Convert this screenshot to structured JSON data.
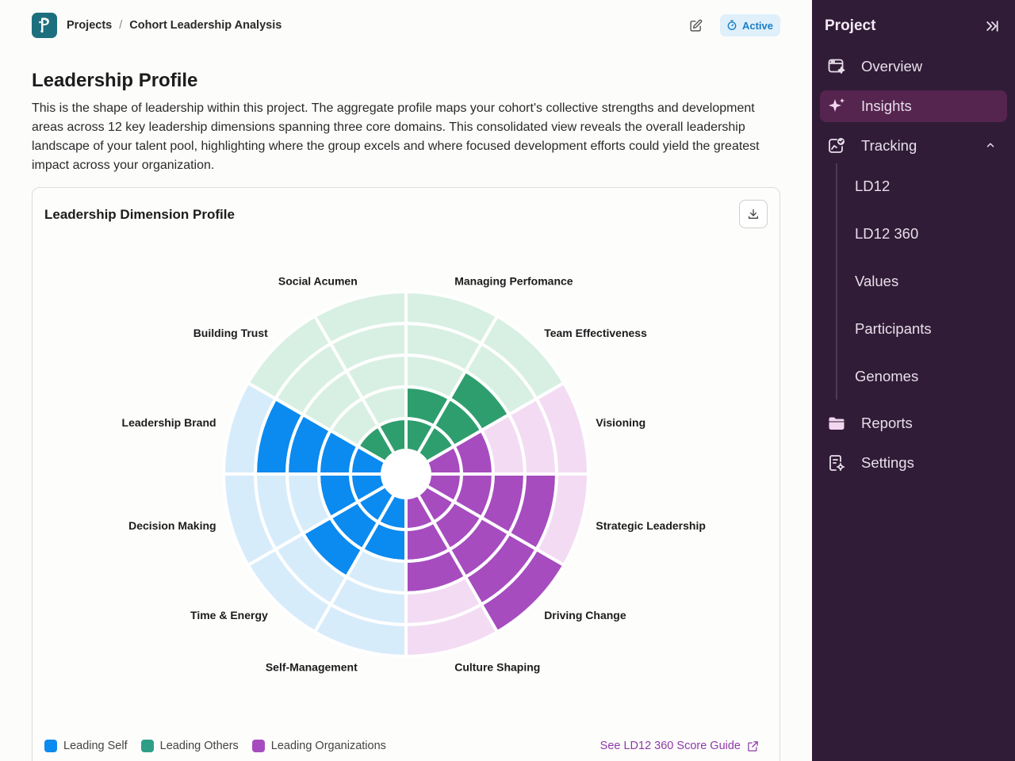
{
  "breadcrumb": {
    "projects": "Projects",
    "separator": "/",
    "current": "Cohort Leadership Analysis"
  },
  "status": {
    "label": "Active",
    "color": "#1b7fc6"
  },
  "page": {
    "title": "Leadership Profile",
    "intro": "This is the shape of leadership within this project. The aggregate profile maps your cohort's collective strengths and development areas across 12 key leadership dimensions spanning three core domains. This consolidated view reveals the overall leadership landscape of your talent pool, highlighting where the group excels and where focused development efforts could yield the greatest impact across your organization."
  },
  "card": {
    "title": "Leadership Dimension Profile"
  },
  "chart_data": {
    "type": "polar-bar",
    "title": "Leadership Dimension Profile",
    "rlim": [
      0,
      5
    ],
    "categories": [
      "Managing Perfomance",
      "Team Effectiveness",
      "Visioning",
      "Strategic Leadership",
      "Driving Change",
      "Culture Shaping",
      "Self-Management",
      "Time & Energy",
      "Decision Making",
      "Leadership Brand",
      "Building Trust",
      "Social Acumen"
    ],
    "values": [
      2,
      3,
      2,
      4,
      5,
      3,
      2,
      3,
      2,
      4,
      1,
      1
    ],
    "domains": [
      "Leading Others",
      "Leading Others",
      "Leading Organizations",
      "Leading Organizations",
      "Leading Organizations",
      "Leading Organizations",
      "Leading Self",
      "Leading Self",
      "Leading Self",
      "Leading Self",
      "Leading Others",
      "Leading Others"
    ],
    "series": [
      {
        "name": "Leading Self",
        "color": "#0b8af0",
        "light": "#d7ecfb"
      },
      {
        "name": "Leading Others",
        "color": "#2f9e6e",
        "light": "#d8f0e3"
      },
      {
        "name": "Leading Organizations",
        "color": "#a64cbf",
        "light": "#f3dcf3"
      }
    ],
    "legend_position": "bottom-left"
  },
  "legend": [
    "Leading Self",
    "Leading Others",
    "Leading Organizations"
  ],
  "guide_link": "See LD12 360 Score Guide",
  "sidebar": {
    "title": "Project",
    "items": [
      {
        "label": "Overview",
        "icon": "window-sparkle-icon"
      },
      {
        "label": "Insights",
        "icon": "sparkle-icon",
        "active": true
      },
      {
        "label": "Tracking",
        "icon": "tracking-icon",
        "expanded": true
      },
      {
        "label": "Reports",
        "icon": "folder-icon"
      },
      {
        "label": "Settings",
        "icon": "settings-doc-icon"
      }
    ],
    "subitems": [
      "LD12",
      "LD12 360",
      "Values",
      "Participants",
      "Genomes"
    ]
  }
}
